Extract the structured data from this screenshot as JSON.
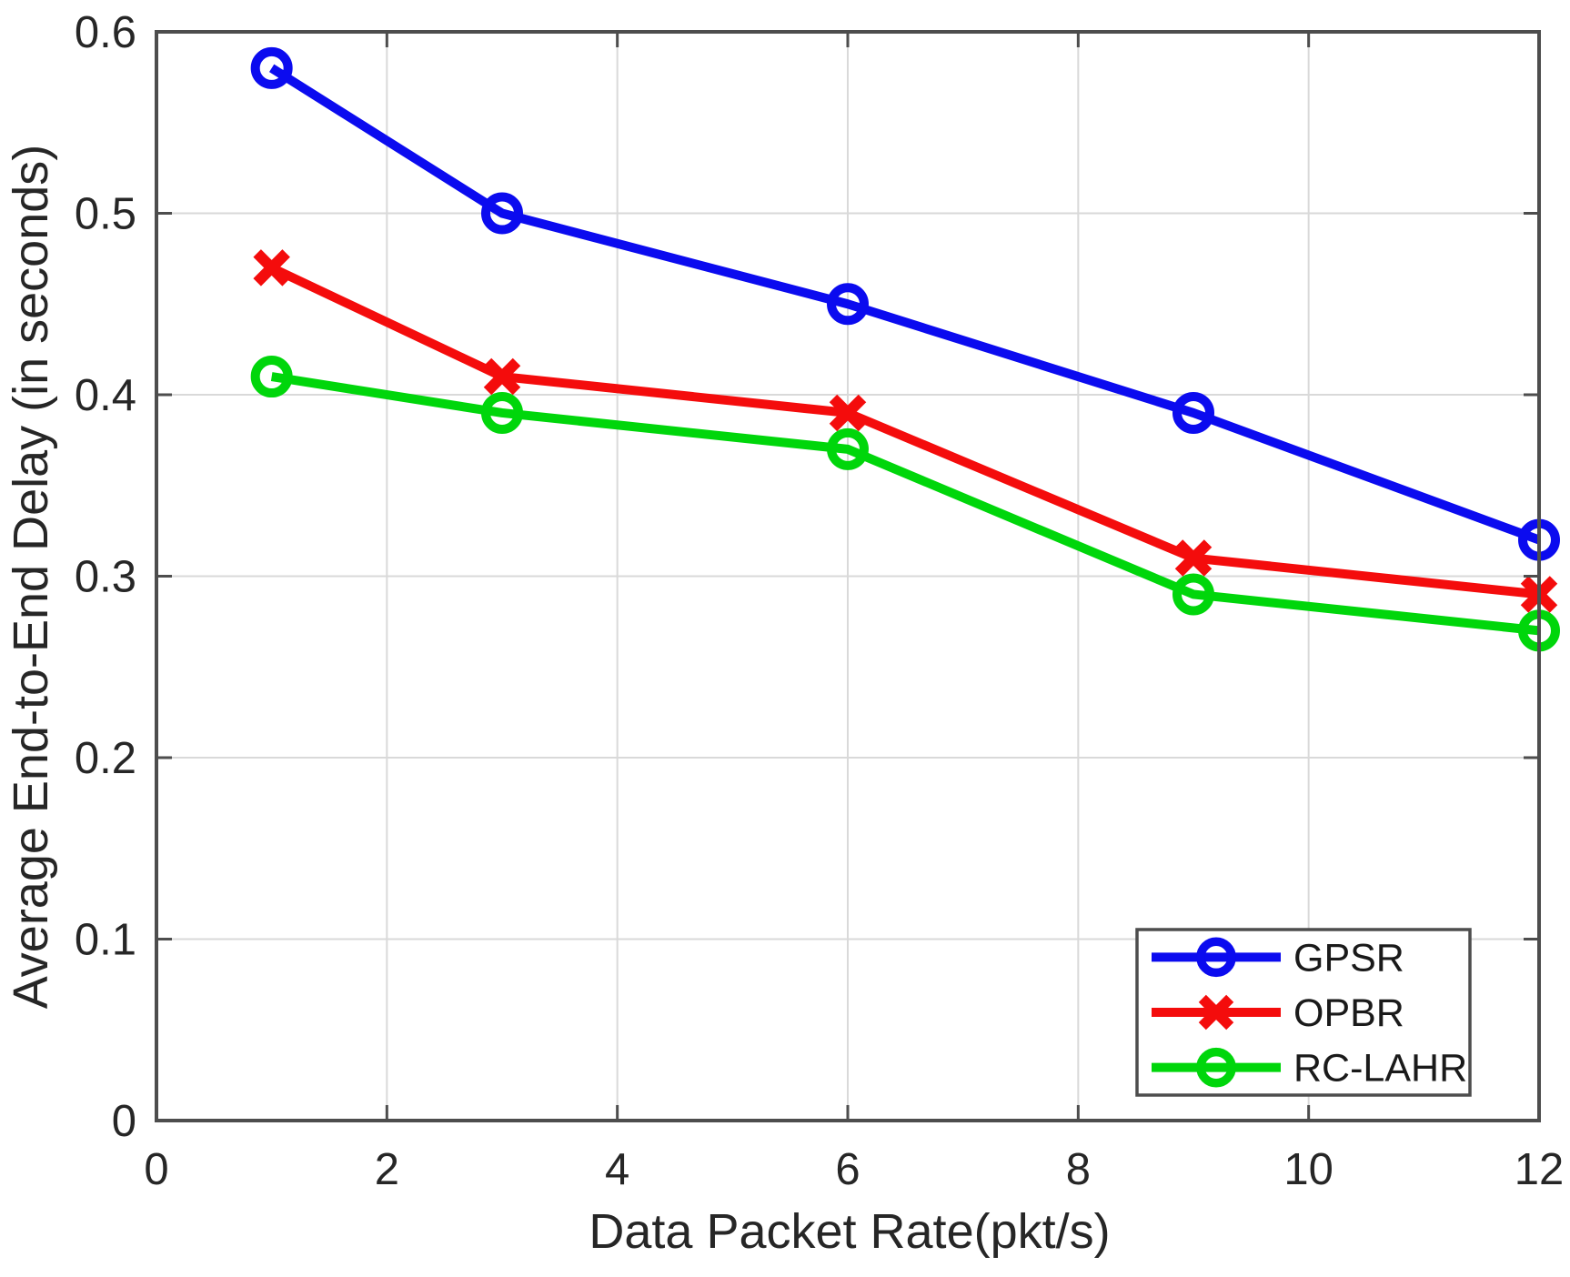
{
  "figure": {
    "background": "#ffffff",
    "spine_color": "#4d4d4d",
    "grid_color": "#d9d9d9",
    "tick_color": "#4d4d4d",
    "text_color": "#262626"
  },
  "chart_data": {
    "type": "line",
    "title": "",
    "xlabel": "Data Packet Rate(pkt/s)",
    "ylabel": "Average End-to-End Delay (in seconds)",
    "xlim": [
      0,
      12
    ],
    "ylim": [
      0,
      0.6
    ],
    "x_tick_values": [
      0,
      2,
      4,
      6,
      8,
      10,
      12
    ],
    "x_tick_labels": [
      "0",
      "2",
      "4",
      "6",
      "8",
      "10",
      "12"
    ],
    "y_tick_values": [
      0,
      0.1,
      0.2,
      0.3,
      0.4,
      0.5,
      0.6
    ],
    "y_tick_labels": [
      "0",
      "0.1",
      "0.2",
      "0.3",
      "0.4",
      "0.5",
      "0.6"
    ],
    "grid": true,
    "x": [
      1,
      3,
      6,
      9,
      12
    ],
    "series": [
      {
        "name": "GPSR",
        "color": "#0b0bef",
        "marker": "circle",
        "values": [
          0.58,
          0.5,
          0.45,
          0.39,
          0.32
        ]
      },
      {
        "name": "OPBR",
        "color": "#f40c0c",
        "marker": "x",
        "values": [
          0.47,
          0.41,
          0.39,
          0.31,
          0.29
        ]
      },
      {
        "name": "RC-LAHR",
        "color": "#00d60b",
        "marker": "circle",
        "values": [
          0.41,
          0.39,
          0.37,
          0.29,
          0.27
        ]
      }
    ],
    "legend": {
      "position": "bottom-right",
      "entries": [
        "GPSR",
        "OPBR",
        "RC-LAHR"
      ]
    }
  }
}
